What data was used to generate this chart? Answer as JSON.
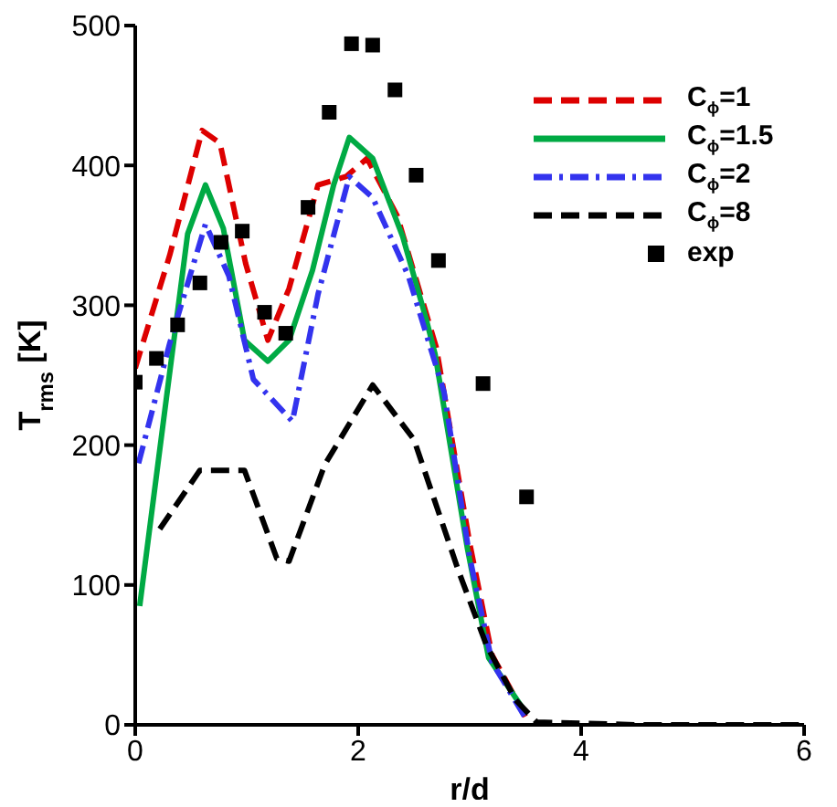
{
  "chart_data": {
    "type": "line",
    "xlabel": "r/d",
    "ylabel": "T$_{rms}$ [K]",
    "xlim": [
      0,
      6
    ],
    "xticks": [
      0,
      2,
      4,
      6
    ],
    "ylim": [
      0,
      500
    ],
    "yticks": [
      0,
      100,
      200,
      300,
      400,
      500
    ],
    "grid": false,
    "legend": "top right",
    "marker": "none",
    "series": [
      {
        "name": "C$_{ϕ}$=1",
        "color": "#dd0000",
        "line_style": "dashed",
        "x": [
          0,
          0.31,
          0.6,
          0.76,
          0.99,
          1.19,
          1.38,
          1.64,
          1.89,
          2.08,
          2.35,
          2.7,
          3.0,
          3.2,
          3.5
        ],
        "values": [
          255,
          336,
          425,
          416,
          330,
          275,
          312,
          386,
          392,
          405,
          364,
          270,
          130,
          50,
          6
        ]
      },
      {
        "name": "C$_{ϕ}$=1.5",
        "color": "#00aa44",
        "line_style": "solid",
        "x": [
          0.04,
          0.28,
          0.47,
          0.63,
          0.79,
          0.98,
          1.19,
          1.38,
          1.59,
          1.78,
          1.92,
          2.13,
          2.4,
          2.61,
          2.69,
          2.98,
          3.17,
          3.5
        ],
        "values": [
          85,
          234,
          351,
          386,
          355,
          275,
          260,
          275,
          325,
          386,
          420,
          405,
          349,
          290,
          265,
          126,
          48,
          9
        ]
      },
      {
        "name": "C$_{ϕ}$=2",
        "color": "#3333ee",
        "line_style": "dashdot",
        "x": [
          0.03,
          0.31,
          0.63,
          0.84,
          1.06,
          1.41,
          1.64,
          1.92,
          2.13,
          2.45,
          2.77,
          3.0,
          3.2,
          3.5
        ],
        "values": [
          187,
          273,
          358,
          321,
          247,
          217,
          308,
          392,
          377,
          321,
          238,
          120,
          45,
          5
        ]
      },
      {
        "name": "C$_{ϕ}$=8",
        "color": "#000000",
        "line_style": "dashed",
        "x": [
          0.22,
          0.58,
          0.79,
          0.98,
          1.27,
          1.38,
          1.7,
          2.13,
          2.5,
          2.9,
          3.15,
          3.41,
          3.6,
          4.5,
          5.2,
          6
        ],
        "values": [
          140,
          182,
          182,
          182,
          119,
          117,
          186,
          243,
          204,
          110,
          57,
          18,
          2,
          0,
          0,
          0
        ]
      },
      {
        "name": "exp",
        "type": "scatter",
        "marker": "square",
        "color": "#000000",
        "x": [
          0,
          0.19,
          0.38,
          0.58,
          0.77,
          0.96,
          1.16,
          1.35,
          1.55,
          1.74,
          1.94,
          2.13,
          2.33,
          2.52,
          2.72,
          3.12,
          3.51
        ],
        "values": [
          245,
          262,
          286,
          316,
          345,
          353,
          295,
          280,
          370,
          438,
          487,
          486,
          454,
          393,
          332,
          244,
          163
        ]
      }
    ]
  }
}
